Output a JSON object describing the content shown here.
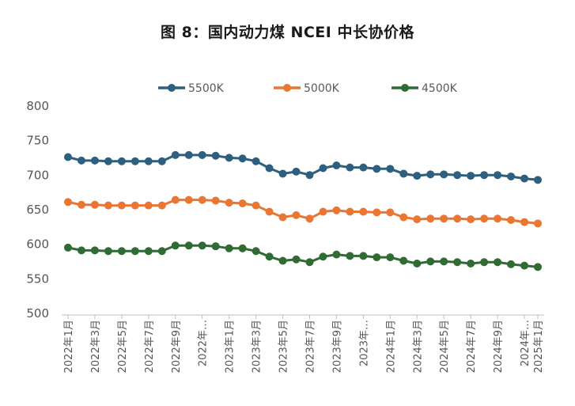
{
  "title": "图 8：国内动力煤 NCEI 中长协价格",
  "chart_data": {
    "type": "line",
    "title": "图 8：国内动力煤 NCEI 中长协价格",
    "ylim": [
      500,
      800
    ],
    "yticks": [
      500,
      550,
      600,
      650,
      700,
      750,
      800
    ],
    "grid": false,
    "legend_position": "top",
    "x_labels": [
      "2022年1月",
      "2022年3月",
      "2022年5月",
      "2022年7月",
      "2022年9月",
      "2022年…",
      "2023年1月",
      "2023年3月",
      "2023年5月",
      "2023年7月",
      "2023年9月",
      "2023年…",
      "2024年1月",
      "2024年3月",
      "2024年5月",
      "2024年7月",
      "2024年9月",
      "2024年…",
      "2025年1月"
    ],
    "series": [
      {
        "name": "5500K",
        "color": "#2e5f7e",
        "values": [
          725,
          720,
          720,
          719,
          719,
          719,
          719,
          719,
          728,
          728,
          728,
          727,
          724,
          723,
          719,
          709,
          701,
          704,
          699,
          709,
          713,
          710,
          710,
          708,
          708,
          701,
          698,
          700,
          700,
          699,
          698,
          699,
          699,
          697,
          694,
          692
        ]
      },
      {
        "name": "5000K",
        "color": "#ea7634",
        "values": [
          660,
          656,
          656,
          655,
          655,
          655,
          655,
          655,
          663,
          663,
          663,
          662,
          659,
          658,
          655,
          646,
          638,
          641,
          636,
          646,
          648,
          646,
          646,
          645,
          645,
          638,
          635,
          636,
          636,
          636,
          635,
          636,
          636,
          634,
          631,
          629
        ]
      },
      {
        "name": "4500K",
        "color": "#2f6b33",
        "values": [
          594,
          590,
          590,
          589,
          589,
          589,
          589,
          589,
          597,
          597,
          597,
          596,
          593,
          593,
          589,
          581,
          575,
          577,
          573,
          581,
          584,
          582,
          582,
          580,
          580,
          575,
          571,
          574,
          574,
          573,
          571,
          573,
          573,
          570,
          568,
          566
        ]
      }
    ]
  }
}
